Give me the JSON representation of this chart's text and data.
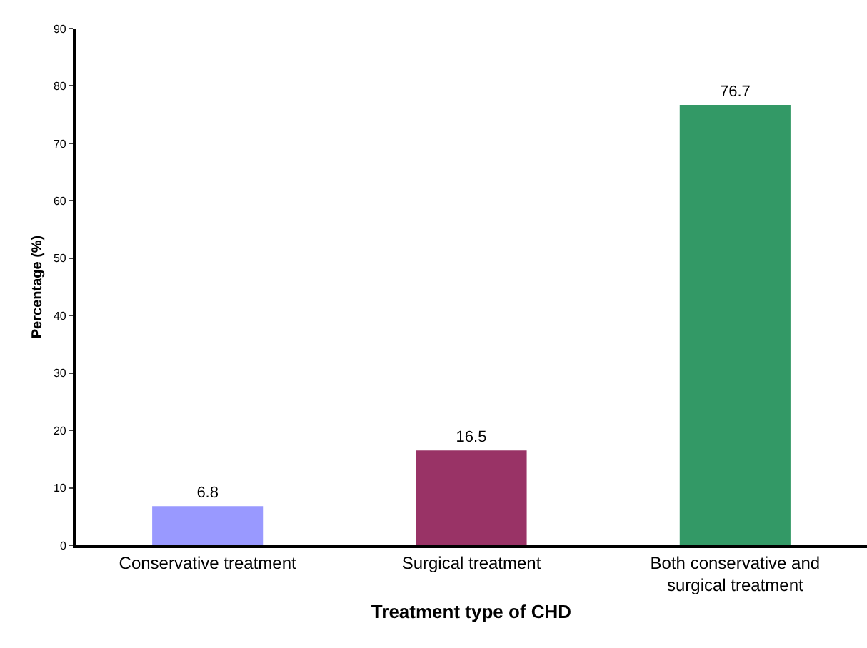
{
  "chart_data": {
    "type": "bar",
    "xlabel": "Treatment type of CHD",
    "ylabel": "Percentage (%)",
    "categories": [
      "Conservative treatment",
      "Surgical treatment",
      "Both conservative and surgical treatment"
    ],
    "values": [
      6.8,
      16.5,
      76.7
    ],
    "colors": [
      "#9999ff",
      "#993366",
      "#339966"
    ],
    "ylim": [
      0,
      90
    ],
    "yticks": [
      0,
      10,
      20,
      30,
      40,
      50,
      60,
      70,
      80,
      90
    ],
    "data_labels": true
  }
}
